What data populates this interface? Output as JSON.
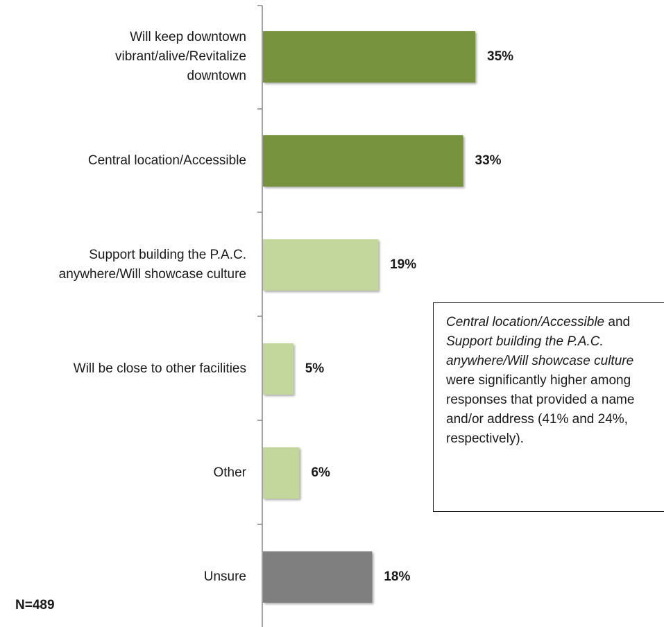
{
  "chart_data": {
    "type": "bar",
    "orientation": "horizontal",
    "categories": [
      "Will keep downtown vibrant/alive/Revitalize downtown",
      "Central location/Accessible",
      "Support building the P.A.C. anywhere/Will showcase culture",
      "Will be close to other facilities",
      "Other",
      "Unsure"
    ],
    "category_lines": [
      [
        "Will keep downtown",
        "vibrant/alive/Revitalize",
        "downtown"
      ],
      [
        "Central location/Accessible"
      ],
      [
        "Support building the P.A.C.",
        "anywhere/Will showcase culture"
      ],
      [
        "Will be close to other facilities"
      ],
      [
        "Other"
      ],
      [
        "Unsure"
      ]
    ],
    "values": [
      35,
      33,
      19,
      5,
      6,
      18
    ],
    "value_labels": [
      "35%",
      "33%",
      "19%",
      "5%",
      "6%",
      "18%"
    ],
    "bar_colors": [
      "#77933c",
      "#77933c",
      "#c3d69b",
      "#c3d69b",
      "#c3d69b",
      "#7f7f7f"
    ],
    "unit": "%",
    "xlim": [
      0,
      35
    ],
    "grid": false,
    "legend": "none",
    "n_label": "N=489",
    "annotation": {
      "segments": [
        {
          "text": "Central location/Accessible",
          "italic": true
        },
        {
          "text": " and ",
          "italic": false
        },
        {
          "text": "Support building the P.A.C. anywhere/Will showcase culture",
          "italic": true
        },
        {
          "text": " were significantly higher among responses that provided a name and/or address (41% and 24%, respectively).",
          "italic": false
        }
      ]
    }
  }
}
